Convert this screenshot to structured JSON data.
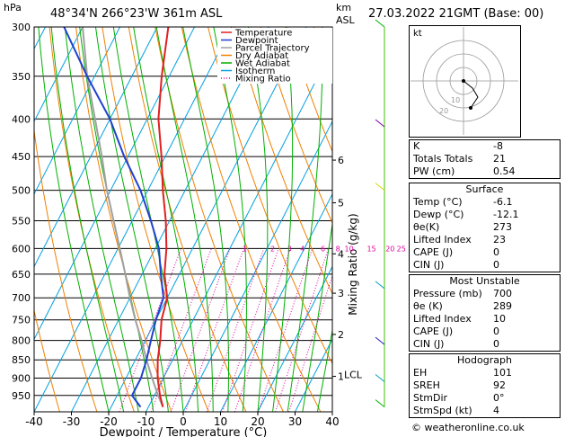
{
  "header": {
    "hpa_label": "hPa",
    "location": "48°34'N  266°23'W  361m  ASL",
    "km_label": "km",
    "asl_label": "ASL",
    "datetime": "27.03.2022  21GMT  (Base: 00)"
  },
  "legend": [
    "Temperature",
    "Dewpoint",
    "Parcel Trajectory",
    "Dry Adiabat",
    "Wet Adiabat",
    "Isotherm",
    "Mixing Ratio"
  ],
  "colors": {
    "temperature": "#e02020",
    "dewpoint": "#2040d0",
    "parcel": "#a0a0a0",
    "dry_adiabat": "#f08000",
    "wet_adiabat": "#00b000",
    "isotherm": "#00a0e0",
    "mixing_ratio": "#e000a0"
  },
  "chart_data": {
    "type": "skew-t",
    "xlabel": "Dewpoint / Temperature (°C)",
    "ylabel_right": "Mixing Ratio (g/kg)",
    "x_ticks": [
      -40,
      -30,
      -20,
      -10,
      0,
      10,
      20,
      30,
      40
    ],
    "x_tick_labels": [
      "-40",
      "-30",
      "-20",
      "-10",
      "0",
      "10",
      "20",
      "30",
      "40"
    ],
    "pressure_levels": [
      300,
      350,
      400,
      450,
      500,
      550,
      600,
      650,
      700,
      750,
      800,
      850,
      900,
      950
    ],
    "pressure_labels": [
      "300",
      "350",
      "400",
      "450",
      "500",
      "550",
      "600",
      "650",
      "700",
      "750",
      "800",
      "850",
      "900",
      "950"
    ],
    "km_ticks": [
      {
        "p": 455,
        "label": "6"
      },
      {
        "p": 520,
        "label": "5"
      },
      {
        "p": 610,
        "label": "4"
      },
      {
        "p": 690,
        "label": "3"
      },
      {
        "p": 785,
        "label": "2"
      },
      {
        "p": 895,
        "label": "1"
      }
    ],
    "lcl": {
      "p": 890,
      "label": "LCL"
    },
    "mixing_ratio_labels": [
      {
        "r": "1",
        "t600": -6
      },
      {
        "r": "2",
        "t600": 1.5
      },
      {
        "r": "3",
        "t600": 6
      },
      {
        "r": "4",
        "t600": 9.5
      },
      {
        "r": "6",
        "t600": 15
      },
      {
        "r": "8",
        "t600": 19
      },
      {
        "r": "10",
        "t600": 22
      },
      {
        "r": "15",
        "t600": 28
      },
      {
        "r": "20",
        "t600": 33
      },
      {
        "r": "25",
        "t600": 36
      }
    ],
    "temperature": [
      [
        985,
        -6.1
      ],
      [
        950,
        -8.5
      ],
      [
        900,
        -11.5
      ],
      [
        850,
        -14
      ],
      [
        800,
        -16
      ],
      [
        750,
        -18.5
      ],
      [
        700,
        -20
      ],
      [
        650,
        -24
      ],
      [
        600,
        -27
      ],
      [
        550,
        -31
      ],
      [
        500,
        -36
      ],
      [
        450,
        -41
      ],
      [
        400,
        -47
      ],
      [
        350,
        -52
      ],
      [
        300,
        -57
      ]
    ],
    "dewpoint": [
      [
        985,
        -12.1
      ],
      [
        950,
        -16
      ],
      [
        900,
        -16
      ],
      [
        850,
        -17
      ],
      [
        800,
        -18.5
      ],
      [
        750,
        -20
      ],
      [
        700,
        -21
      ],
      [
        650,
        -25
      ],
      [
        600,
        -29
      ],
      [
        550,
        -35
      ],
      [
        500,
        -42
      ],
      [
        450,
        -51
      ],
      [
        400,
        -60
      ],
      [
        350,
        -72
      ],
      [
        300,
        -85
      ]
    ],
    "parcel": [
      [
        985,
        -6.1
      ],
      [
        950,
        -9
      ],
      [
        900,
        -13
      ],
      [
        850,
        -17
      ],
      [
        800,
        -21
      ],
      [
        750,
        -25.5
      ],
      [
        700,
        -30
      ],
      [
        650,
        -34.5
      ],
      [
        600,
        -39.5
      ],
      [
        550,
        -45
      ],
      [
        500,
        -51
      ],
      [
        450,
        -57
      ],
      [
        400,
        -64
      ],
      [
        350,
        -72
      ],
      [
        300,
        -80
      ]
    ]
  },
  "hodograph": {
    "label": "kt",
    "ring_labels": [
      "10",
      "20"
    ]
  },
  "indices": [
    {
      "k": "K",
      "v": "-8"
    },
    {
      "k": "Totals Totals",
      "v": "21"
    },
    {
      "k": "PW (cm)",
      "v": "0.54"
    }
  ],
  "surface": {
    "title": "Surface",
    "rows": [
      {
        "k": "Temp (°C)",
        "v": "-6.1"
      },
      {
        "k": "Dewp (°C)",
        "v": "-12.1"
      },
      {
        "k": "θe(K)",
        "v": "273"
      },
      {
        "k": "Lifted Index",
        "v": "23"
      },
      {
        "k": "CAPE (J)",
        "v": "0"
      },
      {
        "k": "CIN (J)",
        "v": "0"
      }
    ]
  },
  "most_unstable": {
    "title": "Most Unstable",
    "rows": [
      {
        "k": "Pressure (mb)",
        "v": "700"
      },
      {
        "k": "θe (K)",
        "v": "289"
      },
      {
        "k": "Lifted Index",
        "v": "10"
      },
      {
        "k": "CAPE (J)",
        "v": "0"
      },
      {
        "k": "CIN (J)",
        "v": "0"
      }
    ]
  },
  "hodograph_table": {
    "title": "Hodograph",
    "rows": [
      {
        "k": "EH",
        "v": "101"
      },
      {
        "k": "SREH",
        "v": "92"
      },
      {
        "k": "StmDir",
        "v": "0°"
      },
      {
        "k": "StmSpd (kt)",
        "v": "4"
      }
    ]
  },
  "footer": "© weatheronline.co.uk"
}
